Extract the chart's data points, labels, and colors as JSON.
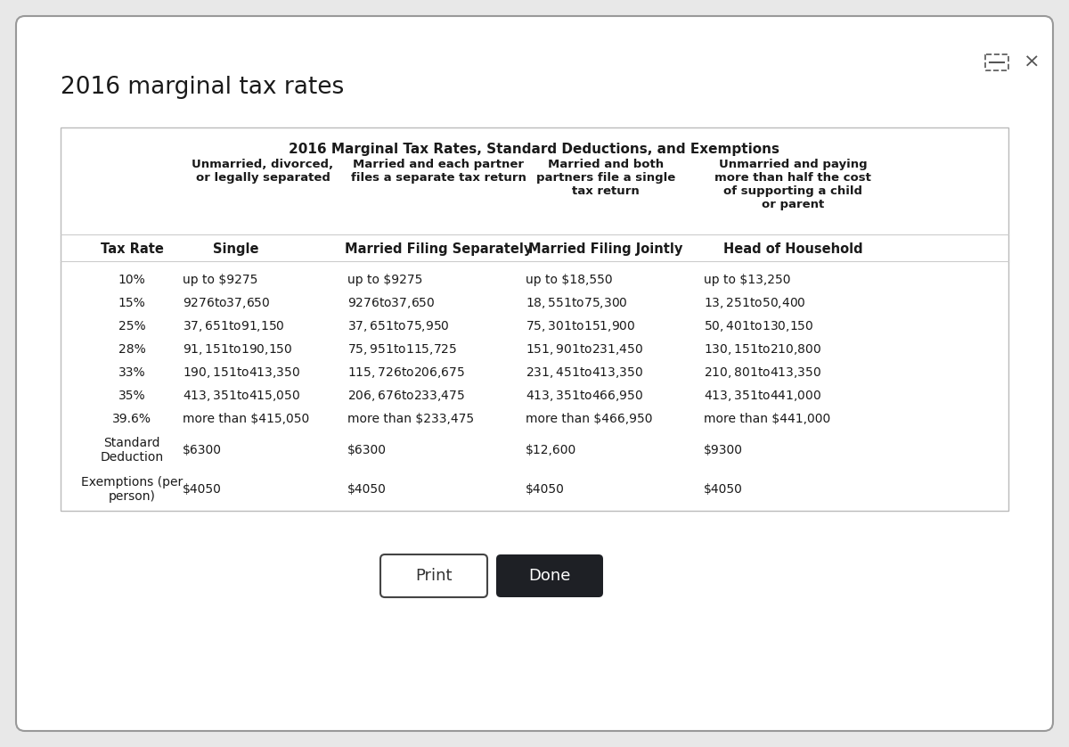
{
  "window_title": "2016 marginal tax rates",
  "table_title": "2016 Marginal Tax Rates, Standard Deductions, and Exemptions",
  "col_subtitles": [
    "Unmarried, divorced,\nor legally separated",
    "Married and each partner\nfiles a separate tax return",
    "Married and both\npartners file a single\ntax return",
    "Unmarried and paying\nmore than half the cost\nof supporting a child\nor parent"
  ],
  "col_headers": [
    "Tax Rate",
    "Single",
    "Married Filing Separately",
    "Married Filing Jointly",
    "Head of Household"
  ],
  "rows": [
    [
      "10%",
      "up to $9275",
      "up to $9275",
      "up to $18,550",
      "up to $13,250"
    ],
    [
      "15%",
      "$9276 to $37,650",
      "$9276 to $37,650",
      "$18,551 to $75,300",
      "$13,251 to $50,400"
    ],
    [
      "25%",
      "$37,651 to $91,150",
      "$37,651 to $75,950",
      "$75,301 to $151,900",
      "$50,401 to $130,150"
    ],
    [
      "28%",
      "$91,151 to $190,150",
      "$75,951 to $115,725",
      "$151,901 to $231,450",
      "$130,151 to $210,800"
    ],
    [
      "33%",
      "$190,151 to $413,350",
      "$115,726 to $206,675",
      "$231,451 to $413,350",
      "$210,801 to $413,350"
    ],
    [
      "35%",
      "$413,351 to $415,050",
      "$206,676 to $233,475",
      "$413,351 to $466,950",
      "$413,351 to $441,000"
    ],
    [
      "39.6%",
      "more than $415,050",
      "more than $233,475",
      "more than $466,950",
      "more than $441,000"
    ],
    [
      "Standard\nDeduction",
      "$6300",
      "$6300",
      "$12,600",
      "$9300"
    ],
    [
      "Exemptions (per\nperson)",
      "$4050",
      "$4050",
      "$4050",
      "$4050"
    ]
  ],
  "bg_color": "#e8e8e8",
  "window_bg": "#ffffff",
  "table_bg": "#ffffff",
  "border_color": "#cccccc",
  "text_color": "#1a1a1a",
  "print_btn_color": "#ffffff",
  "done_btn_color": "#1e2025",
  "print_btn_text": "Print",
  "done_btn_text": "Done"
}
